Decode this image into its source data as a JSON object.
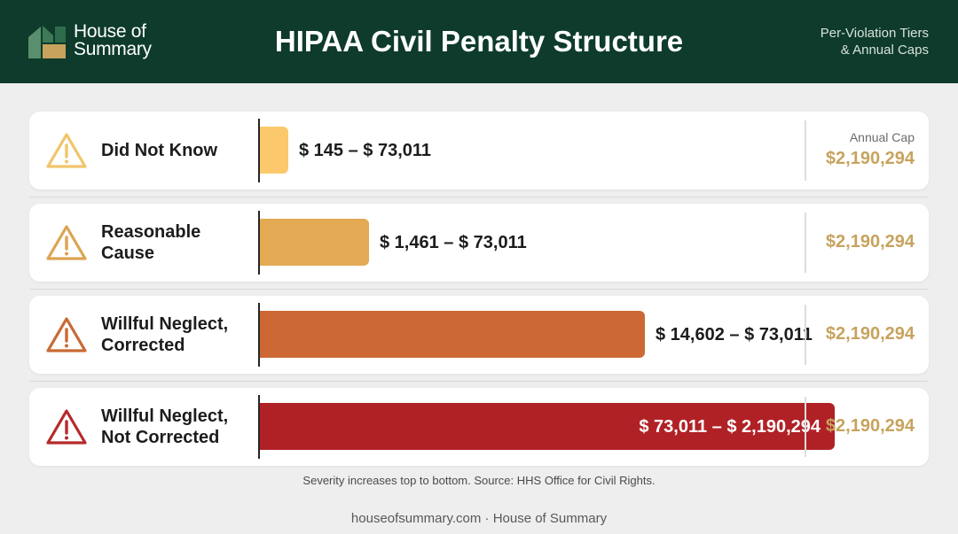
{
  "header": {
    "brand_line1": "House of",
    "brand_line2": "Summary",
    "title": "HIPAA Civil Penalty Structure",
    "subtitle_line1": "Per-Violation Tiers",
    "subtitle_line2": "& Annual Caps"
  },
  "colors": {
    "header_bg": "#0e3b2b",
    "cap_gold": "#c7a35e"
  },
  "chart_data": {
    "type": "bar",
    "orientation": "horizontal",
    "title": "HIPAA Civil Penalty Structure",
    "subtitle": "Per-Violation Tiers & Annual Caps",
    "categories": [
      "Did Not Know",
      "Reasonable Cause",
      "Willful Neglect, Corrected",
      "Willful Neglect, Not Corrected"
    ],
    "tiers": [
      {
        "label_lines": [
          "Did Not Know"
        ],
        "min": 145,
        "max": 73011,
        "range_label": "$ 145 – $ 73,011",
        "cap": "$2,190,294",
        "color": "#fbc96b",
        "icon_color": "#f2c46a",
        "relative_length": 0.05
      },
      {
        "label_lines": [
          "Reasonable",
          "Cause"
        ],
        "min": 1461,
        "max": 73011,
        "range_label": "$ 1,461 – $ 73,011",
        "cap": "$2,190,294",
        "color": "#e4a953",
        "icon_color": "#dca451",
        "relative_length": 0.19
      },
      {
        "label_lines": [
          "Willful Neglect,",
          "Corrected"
        ],
        "min": 14602,
        "max": 73011,
        "range_label": "$ 14,602 – $ 73,011",
        "cap": "$2,190,294",
        "color": "#cc6834",
        "icon_color": "#c96a35",
        "relative_length": 0.67
      },
      {
        "label_lines": [
          "Willful Neglect,",
          "Not Corrected"
        ],
        "min": 73011,
        "max": 2190294,
        "range_label": "$ 73,011 – $ 2,190,294",
        "cap": "$2,190,294",
        "color": "#b02126",
        "icon_color": "#b52a2c",
        "relative_length": 1.0
      }
    ],
    "annual_cap_label": "Annual Cap"
  },
  "note": "Severity increases top to bottom. Source: HHS Office for Civil Rights.",
  "footer": "houseofsummary.com · House of Summary"
}
